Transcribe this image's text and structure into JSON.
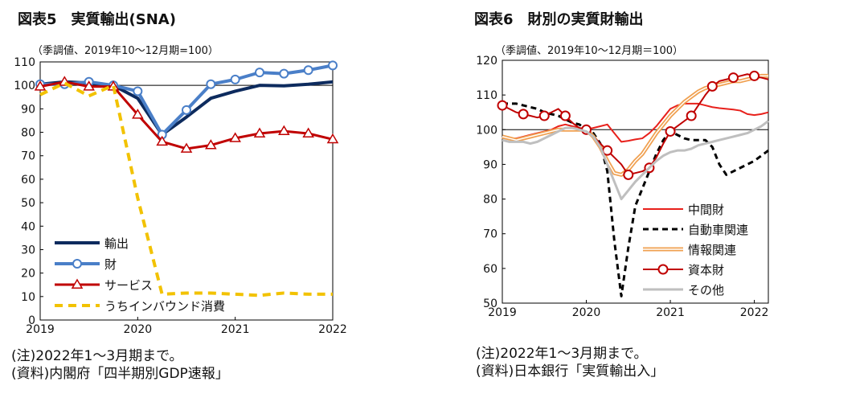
{
  "left": {
    "title": "図表5　実質輸出(SNA)",
    "notes": [
      "(注)2022年1～3月期まで。",
      "(資料)内閣府「四半期別GDP速報」"
    ],
    "chart_data": {
      "type": "line",
      "unit_label": "（季調値、2019年10～12月期=100）",
      "xticks": [
        "2019",
        "2020",
        "2021",
        "2022"
      ],
      "xticks_pos": [
        0,
        4,
        8,
        12
      ],
      "ylim": [
        0,
        110
      ],
      "yticks": [
        0,
        10,
        20,
        30,
        40,
        50,
        60,
        70,
        80,
        90,
        100,
        110
      ],
      "baseline": 100,
      "x": [
        0,
        1,
        2,
        3,
        4,
        5,
        6,
        7,
        8,
        9,
        10,
        11,
        12
      ],
      "series": [
        {
          "name": "輸出",
          "color": "#0d2b5e",
          "width": 4,
          "marker": "none",
          "values": [
            100.5,
            101.5,
            101.0,
            100.0,
            94.5,
            79.0,
            86.5,
            94.5,
            97.5,
            100.0,
            99.8,
            100.5,
            101.5
          ]
        },
        {
          "name": "財",
          "color": "#4a7fc8",
          "width": 4,
          "marker": "circle",
          "values": [
            100.5,
            100.5,
            101.5,
            100.0,
            97.5,
            79.0,
            89.5,
            100.5,
            102.5,
            105.5,
            105.0,
            106.5,
            108.5
          ]
        },
        {
          "name": "サービス",
          "color": "#c00000",
          "width": 3,
          "marker": "triangle",
          "values": [
            99.5,
            101.5,
            99.5,
            99.5,
            87.5,
            76.0,
            73.0,
            74.5,
            77.5,
            79.5,
            80.5,
            79.5,
            77.0
          ]
        },
        {
          "name": "うちインバウンド消費",
          "color": "#f2c200",
          "width": 4,
          "dash": "10,7",
          "marker": "none",
          "values": [
            96.0,
            101.0,
            95.5,
            100.0,
            52.0,
            11.0,
            11.5,
            11.5,
            11.0,
            10.5,
            11.5,
            11.0,
            11.0
          ]
        }
      ]
    }
  },
  "right": {
    "title": "図表6　財別の実質財輸出",
    "notes": [
      "(注)2022年1～3月期まで。",
      "(資料)日本銀行「実質輸出入」"
    ],
    "chart_data": {
      "type": "line",
      "unit_label": "（季調値、2019年10～12月期＝100）",
      "xticks": [
        "2019",
        "2020",
        "2021",
        "2022"
      ],
      "xticks_pos": [
        0,
        12,
        24,
        36
      ],
      "ylim": [
        50,
        120
      ],
      "yticks": [
        50,
        60,
        70,
        80,
        90,
        100,
        110,
        120
      ],
      "baseline": 100,
      "x": [
        0,
        1,
        2,
        3,
        4,
        5,
        6,
        7,
        8,
        9,
        10,
        11,
        12,
        13,
        14,
        15,
        16,
        17,
        18,
        19,
        20,
        21,
        22,
        23,
        24,
        25,
        26,
        27,
        28,
        29,
        30,
        31,
        32,
        33,
        34,
        35,
        36,
        37,
        38
      ],
      "series": [
        {
          "name": "中間財",
          "color": "#e8211c",
          "width": 2,
          "marker": "none",
          "values": [
            98.0,
            97.5,
            97.5,
            98.0,
            98.5,
            99.0,
            99.5,
            100.0,
            101.0,
            101.5,
            101.0,
            100.5,
            100.0,
            100.5,
            101.0,
            101.5,
            99.0,
            96.5,
            96.8,
            97.2,
            97.5,
            99.0,
            101.0,
            103.5,
            106.0,
            107.0,
            107.5,
            107.5,
            107.5,
            107.0,
            106.5,
            106.2,
            106.0,
            105.8,
            105.5,
            104.5,
            104.2,
            104.5,
            105.0
          ]
        },
        {
          "name": "自動車関連",
          "color": "#000000",
          "width": 3,
          "dash": "7,5",
          "marker": "none",
          "values": [
            107.5,
            107.5,
            107.5,
            107.0,
            106.5,
            106.0,
            105.0,
            104.5,
            104.0,
            103.0,
            102.0,
            101.5,
            100.0,
            99.0,
            96.0,
            88.0,
            68.0,
            52.0,
            66.0,
            78.0,
            83.0,
            88.0,
            93.0,
            97.0,
            99.5,
            98.5,
            97.5,
            97.0,
            97.0,
            97.0,
            95.0,
            90.0,
            87.0,
            88.0,
            89.0,
            90.0,
            91.0,
            92.5,
            94.0
          ]
        },
        {
          "name": "情報関連",
          "color": "#f0a050",
          "width": 3,
          "double": true,
          "marker": "none",
          "values": [
            98.0,
            97.5,
            97.0,
            97.5,
            98.0,
            98.5,
            99.0,
            99.5,
            100.0,
            100.0,
            100.0,
            100.0,
            100.0,
            98.0,
            95.0,
            91.0,
            87.5,
            87.0,
            88.5,
            91.0,
            93.0,
            96.0,
            99.0,
            101.5,
            104.0,
            106.0,
            108.0,
            109.5,
            111.0,
            112.0,
            112.5,
            113.0,
            113.5,
            114.0,
            114.0,
            114.5,
            115.0,
            115.5,
            115.5
          ]
        },
        {
          "name": "資本財",
          "color": "#c00000",
          "width": 2,
          "marker": "circle",
          "values": [
            107.0,
            106.0,
            105.0,
            104.5,
            104.0,
            103.5,
            104.0,
            105.0,
            106.0,
            104.0,
            102.0,
            100.5,
            100.0,
            98.0,
            96.0,
            94.0,
            92.0,
            90.0,
            87.0,
            87.5,
            88.0,
            89.0,
            92.0,
            96.0,
            99.5,
            101.0,
            102.5,
            104.0,
            107.0,
            110.0,
            112.5,
            114.0,
            114.5,
            115.0,
            115.5,
            116.0,
            115.5,
            115.0,
            114.5
          ]
        },
        {
          "name": "その他",
          "color": "#bfbfbf",
          "width": 3,
          "marker": "none",
          "values": [
            97.0,
            96.5,
            96.5,
            96.5,
            96.0,
            96.5,
            97.5,
            98.5,
            99.5,
            100.5,
            100.5,
            100.0,
            99.5,
            98.0,
            95.0,
            90.0,
            85.0,
            80.0,
            82.5,
            85.0,
            87.0,
            89.0,
            91.0,
            92.5,
            93.5,
            94.0,
            94.0,
            94.5,
            95.5,
            96.0,
            96.5,
            97.0,
            97.5,
            98.0,
            98.5,
            99.0,
            100.0,
            101.0,
            102.5
          ]
        }
      ]
    }
  }
}
